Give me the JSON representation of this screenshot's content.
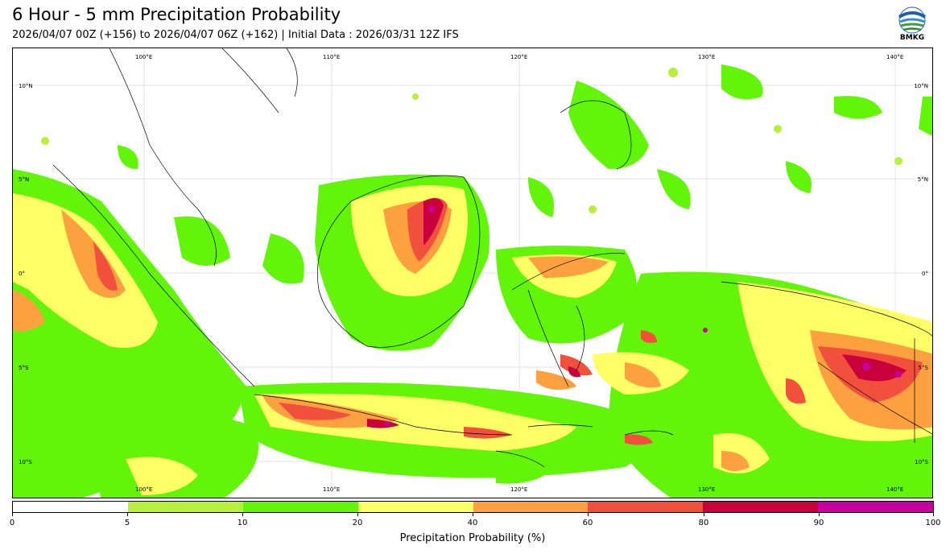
{
  "header": {
    "title": "6 Hour - 5 mm Precipitation Probability",
    "subtitle": "2026/04/07 00Z (+156) to 2026/04/07 06Z (+162) | Initial Data : 2026/03/31 12Z IFS"
  },
  "logo": {
    "text": "BMKG"
  },
  "map": {
    "lon_labels_top": [
      "100°E",
      "110°E",
      "120°E",
      "130°E",
      "140°E"
    ],
    "lon_labels_bottom": [
      "100°E",
      "110°E",
      "120°E",
      "130°E",
      "140°E"
    ],
    "lat_labels_left": [
      "10°N",
      "5°N",
      "0°",
      "5°S",
      "10°S"
    ],
    "lat_labels_right": [
      "10°N",
      "5°N",
      "0°",
      "5°S",
      "10°S"
    ]
  },
  "colorbar": {
    "label": "Precipitation Probability (%)",
    "ticks": [
      "0",
      "5",
      "10",
      "20",
      "40",
      "60",
      "80",
      "90",
      "100"
    ],
    "colors": [
      "#ffffff",
      "#b7f03c",
      "#62f50a",
      "#ffff66",
      "#fca040",
      "#f0503c",
      "#c8003c",
      "#c800a0"
    ]
  }
}
